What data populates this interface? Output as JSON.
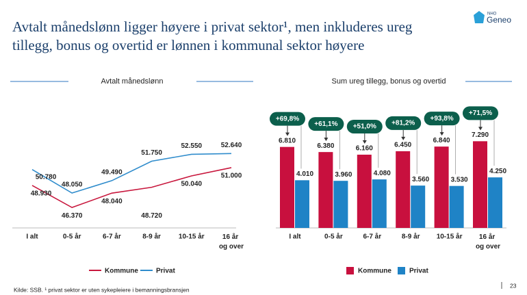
{
  "title": "Avtalt månedslønn ligger høyere i privat sektor¹, men inkluderes ureg tillegg, bonus og overtid er lønnen i kommunal sektor høyere",
  "logo": {
    "top": "NHO",
    "name": "Geneo"
  },
  "footer": "Kilde: SSB. ¹ privat sektor er uten sykepleiere i bemanningsbransjen",
  "page_number": "23",
  "chart_data": [
    {
      "type": "line",
      "title": "Avtalt månedslønn",
      "categories": [
        "I alt",
        "0-5 år",
        "6-7 år",
        "8-9 år",
        "10-15 år",
        "16 år og over"
      ],
      "series": [
        {
          "name": "Kommune",
          "color": "#c8173d",
          "values": [
            48930,
            46370,
            48040,
            48720,
            50040,
            51000
          ],
          "value_labels": [
            "48.930",
            "46.370",
            "48.040",
            "48.720",
            "50.040",
            "51.000"
          ]
        },
        {
          "name": "Privat",
          "color": "#2f8ccc",
          "values": [
            50780,
            48050,
            49490,
            51750,
            52550,
            52640
          ],
          "value_labels": [
            "50.780",
            "48.050",
            "49.490",
            "51.750",
            "52.550",
            "52.640"
          ]
        }
      ],
      "ylim": [
        44000,
        56000
      ]
    },
    {
      "type": "bar",
      "title": "Sum ureg tillegg, bonus og overtid",
      "categories": [
        "I alt",
        "0-5 år",
        "6-7 år",
        "8-9 år",
        "10-15 år",
        "16 år og over"
      ],
      "series": [
        {
          "name": "Kommune",
          "color": "#c8103e",
          "values": [
            6810,
            6380,
            6160,
            6450,
            6840,
            7290
          ],
          "value_labels": [
            "6.810",
            "6.380",
            "6.160",
            "6.450",
            "6.840",
            "7.290"
          ]
        },
        {
          "name": "Privat",
          "color": "#1f83c6",
          "values": [
            4010,
            3960,
            4080,
            3560,
            3530,
            4250
          ],
          "value_labels": [
            "4.010",
            "3.960",
            "4.080",
            "3.560",
            "3.530",
            "4.250"
          ]
        }
      ],
      "annotations": [
        "+69,8%",
        "+61,1%",
        "+51,0%",
        "+81,2%",
        "+93,8%",
        "+71,5%"
      ],
      "ylim": [
        0,
        8000
      ]
    }
  ]
}
